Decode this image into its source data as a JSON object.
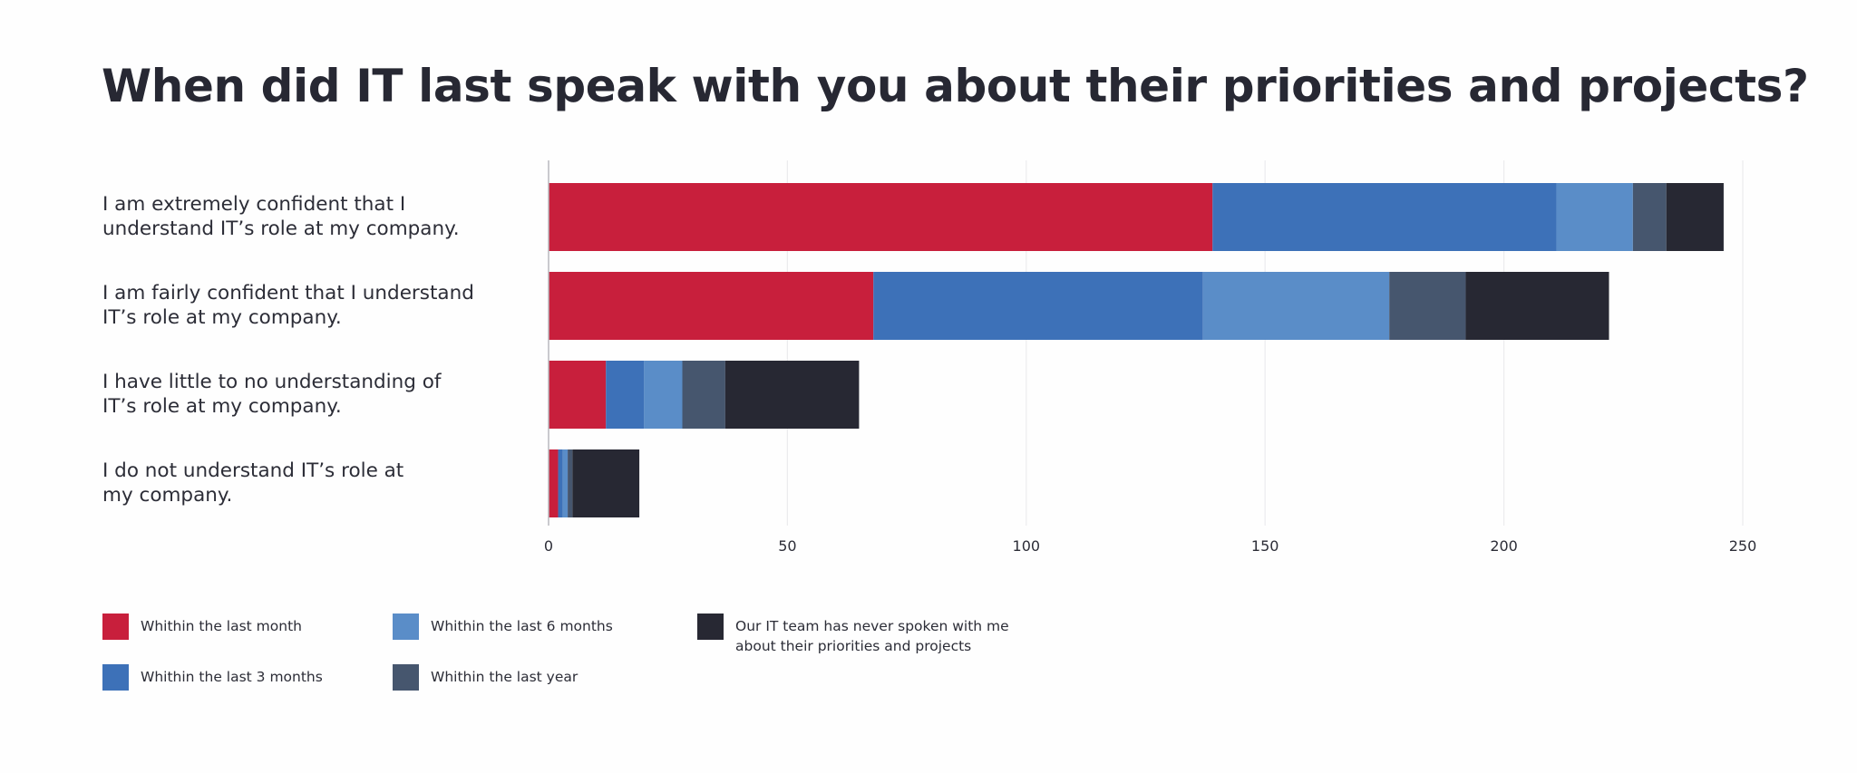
{
  "chart_data": {
    "type": "bar",
    "orientation": "horizontal",
    "stacked": true,
    "title": "When did IT last speak with you about their priorities and projects?",
    "xlabel": "",
    "ylabel": "",
    "xlim": [
      0,
      250
    ],
    "x_ticks": [
      0,
      50,
      100,
      150,
      200,
      250
    ],
    "x_tick_labels": [
      "0",
      "50",
      "100",
      "150",
      "200",
      "250"
    ],
    "grid": true,
    "legend_position": "bottom-left",
    "categories": [
      "I am extremely confident that I understand IT’s role at my company.",
      "I am fairly confident that I understand IT’s role at my company.",
      "I have little to no understanding of IT’s role at my company.",
      "I do not understand IT’s role at my company."
    ],
    "category_lines": [
      [
        "I am extremely confident that I",
        "understand IT’s role at my company."
      ],
      [
        "I am fairly confident that I understand",
        "IT’s role at my company."
      ],
      [
        "I have little to no understanding of",
        "IT’s role at my company."
      ],
      [
        "I do not understand IT’s role at",
        "my company."
      ]
    ],
    "series": [
      {
        "name": "Whithin the last month",
        "color": "#c81f3c",
        "values": [
          139,
          68,
          12,
          2
        ]
      },
      {
        "name": "Whithin the last 3 months",
        "color": "#3d71b8",
        "values": [
          72,
          69,
          8,
          1
        ]
      },
      {
        "name": "Whithin the last 6 months",
        "color": "#5a8dc8",
        "values": [
          16,
          39,
          8,
          1
        ]
      },
      {
        "name": "Whithin the last year",
        "color": "#46566e",
        "values": [
          7,
          16,
          9,
          1
        ]
      },
      {
        "name": "Our IT team has never spoken with me about their priorities and projects",
        "color": "#272833",
        "values": [
          12,
          30,
          28,
          14
        ]
      }
    ],
    "totals": [
      246,
      222,
      65,
      19
    ]
  },
  "legend": {
    "items": [
      {
        "lines": [
          "Whithin the last month"
        ],
        "color": "#c81f3c"
      },
      {
        "lines": [
          "Whithin the last 3 months"
        ],
        "color": "#3d71b8"
      },
      {
        "lines": [
          "Whithin the last 6 months"
        ],
        "color": "#5a8dc8"
      },
      {
        "lines": [
          "Whithin the last year"
        ],
        "color": "#46566e"
      },
      {
        "lines": [
          "Our IT team has never spoken with me",
          "about their priorities and projects"
        ],
        "color": "#272833"
      }
    ]
  },
  "colors": {
    "text": "#272833",
    "gridline": "#ececee",
    "axis": "#b9b9bd"
  }
}
